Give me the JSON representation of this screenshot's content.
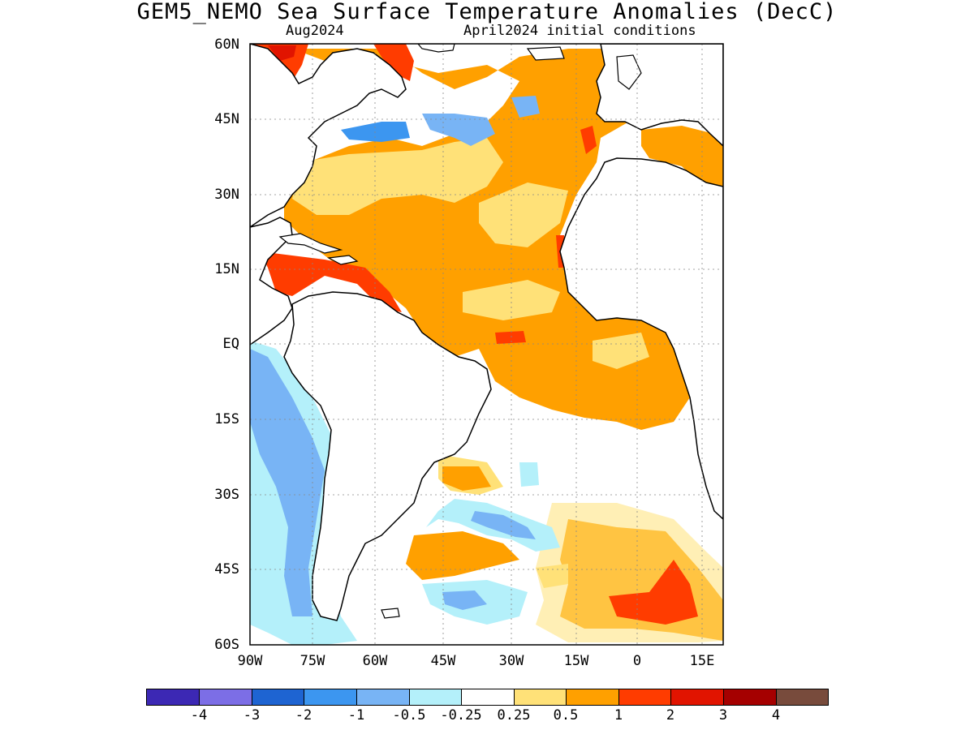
{
  "title": "GEM5_NEMO Sea Surface Temperature Anomalies (DecC)",
  "subtitle_left": "Aug2024",
  "subtitle_right": "April2024 initial conditions",
  "lat_labels": [
    "60N",
    "45N",
    "30N",
    "15N",
    "EQ",
    "15S",
    "30S",
    "45S",
    "60S"
  ],
  "lon_labels": [
    "90W",
    "75W",
    "60W",
    "45W",
    "30W",
    "15W",
    "0",
    "15E"
  ],
  "colorbar": {
    "colors": [
      "#3c28b4",
      "#7c6ee6",
      "#1e64d2",
      "#3c96f0",
      "#78b4f5",
      "#b4f0fa",
      "#ffffff",
      "#ffe178",
      "#ffa000",
      "#ff3c00",
      "#e11400",
      "#a50000",
      "#784b3c"
    ],
    "labels": [
      "-4",
      "-3",
      "-2",
      "-1",
      "-0.5",
      "-0.25",
      "0.25",
      "0.5",
      "1",
      "2",
      "3",
      "4"
    ]
  }
}
